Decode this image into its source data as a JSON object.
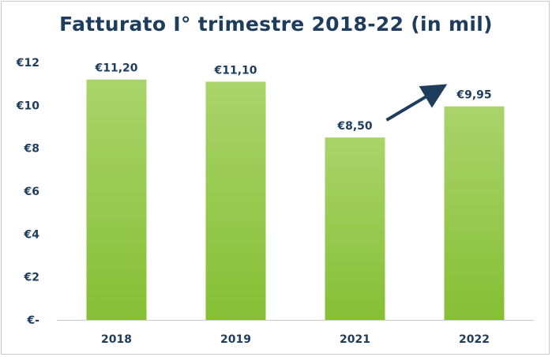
{
  "chart_data": {
    "type": "bar",
    "title": "Fatturato I° trimestre 2018-22 (in mil)",
    "categories": [
      "2018",
      "2019",
      "2021",
      "2022"
    ],
    "values": [
      11.2,
      11.1,
      8.5,
      9.95
    ],
    "data_labels": [
      "€11,20",
      "€11,10",
      "€8,50",
      "€9,95"
    ],
    "ylim": [
      0,
      12
    ],
    "yticks": [
      0,
      2,
      4,
      6,
      8,
      10,
      12
    ],
    "ytick_labels": [
      "€-",
      "€2",
      "€4",
      "€6",
      "€8",
      "€10",
      "€12"
    ],
    "xlabel": "",
    "ylabel": "",
    "grid": false,
    "legend": "none",
    "annotation": {
      "type": "arrow",
      "from_category": "2021",
      "to_category": "2022"
    },
    "colors": {
      "bar_top": "#a9d46b",
      "bar_bottom": "#86bf34",
      "text": "#1e3d5c",
      "arrow": "#1e3d5c",
      "axis": "#c9c9c9"
    }
  }
}
